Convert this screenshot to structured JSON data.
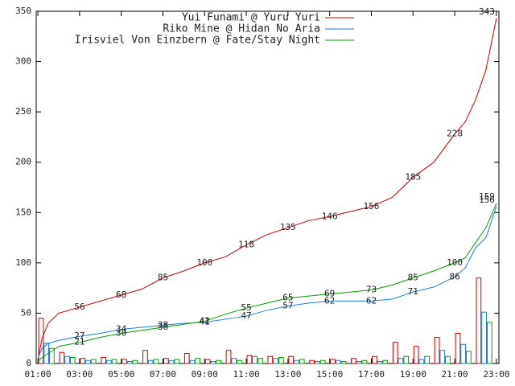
{
  "chart_data": {
    "type": "line",
    "x": [
      1,
      1.2,
      1.5,
      2,
      3,
      4,
      5,
      6,
      7,
      8,
      9,
      10,
      11,
      12,
      13,
      14,
      15,
      16,
      17,
      18,
      19,
      20,
      21,
      21.5,
      22,
      22.5,
      23
    ],
    "series": [
      {
        "name": "Yui Funami @ Yuru Yuri",
        "color": "#cc0000",
        "values": [
          3,
          25,
          40,
          50,
          56,
          62,
          68,
          74,
          85,
          92,
          100,
          106,
          118,
          128,
          135,
          142,
          146,
          151,
          156,
          165,
          185,
          200,
          228,
          240,
          262,
          292,
          343
        ],
        "hourly": [
          45,
          11,
          5,
          6,
          4,
          13,
          5,
          10,
          4,
          13,
          8,
          7,
          7,
          3,
          4,
          5,
          7,
          21,
          17,
          26,
          30,
          85
        ]
      },
      {
        "name": "Riko Mine @ Hidan No Aria",
        "color": "#1a7fcf",
        "values": [
          5,
          15,
          20,
          23,
          27,
          30,
          34,
          36,
          38,
          40,
          41,
          44,
          47,
          53,
          57,
          60,
          62,
          62,
          62,
          64,
          71,
          76,
          86,
          95,
          115,
          125,
          156
        ],
        "hourly": [
          20,
          7,
          3,
          3,
          2,
          3,
          3,
          3,
          2,
          5,
          7,
          5,
          3,
          2,
          3,
          2,
          2,
          5,
          4,
          13,
          19,
          51
        ]
      },
      {
        "name": "Irisviel Von Einzbern @ Fate/Stay Night",
        "color": "#00a000",
        "values": [
          2,
          6,
          10,
          17,
          21,
          26,
          30,
          33,
          36,
          39,
          42,
          49,
          55,
          60,
          65,
          67,
          69,
          71,
          73,
          78,
          85,
          92,
          100,
          105,
          120,
          135,
          159
        ],
        "hourly": [
          15,
          6,
          4,
          4,
          3,
          4,
          4,
          5,
          3,
          3,
          5,
          6,
          4,
          3,
          2,
          3,
          3,
          7,
          7,
          7,
          12,
          41
        ]
      }
    ],
    "bar_x": [
      1,
      2,
      3,
      4,
      5,
      6,
      7,
      8,
      9,
      10,
      11,
      12,
      13,
      14,
      15,
      16,
      17,
      18,
      19,
      20,
      21,
      22
    ],
    "xlim": [
      0.92,
      23.12
    ],
    "xticks": [
      {
        "value": 1,
        "label": "01:00"
      },
      {
        "value": 3,
        "label": "03:00"
      },
      {
        "value": 5,
        "label": "05:00"
      },
      {
        "value": 7,
        "label": "07:00"
      },
      {
        "value": 9,
        "label": "09:00"
      },
      {
        "value": 11,
        "label": "11:00"
      },
      {
        "value": 13,
        "label": "13:00"
      },
      {
        "value": 15,
        "label": "15:00"
      },
      {
        "value": 17,
        "label": "17:00"
      },
      {
        "value": 19,
        "label": "19:00"
      },
      {
        "value": 21,
        "label": "21:00"
      },
      {
        "value": 23,
        "label": "23:00"
      }
    ],
    "ylim": [
      0,
      350
    ],
    "yticks": [
      0,
      50,
      100,
      150,
      200,
      250,
      300,
      350
    ],
    "legend": "top-right"
  }
}
